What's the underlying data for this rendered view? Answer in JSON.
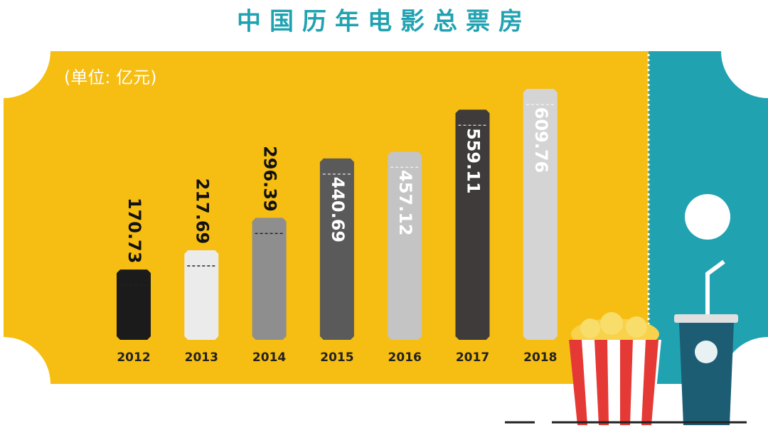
{
  "chart_data": {
    "type": "bar",
    "title": "中国历年电影总票房",
    "subtitle": "(单位: 亿元)",
    "categories": [
      "2012",
      "2013",
      "2014",
      "2015",
      "2016",
      "2017",
      "2018"
    ],
    "values": [
      170.73,
      217.69,
      296.39,
      440.69,
      457.12,
      559.11,
      609.76
    ],
    "colors": [
      "#1b1b1b",
      "#ebebeb",
      "#8e8e8e",
      "#5a5a5a",
      "#c4c4c4",
      "#3f3b3b",
      "#d4d4d4"
    ]
  }
}
